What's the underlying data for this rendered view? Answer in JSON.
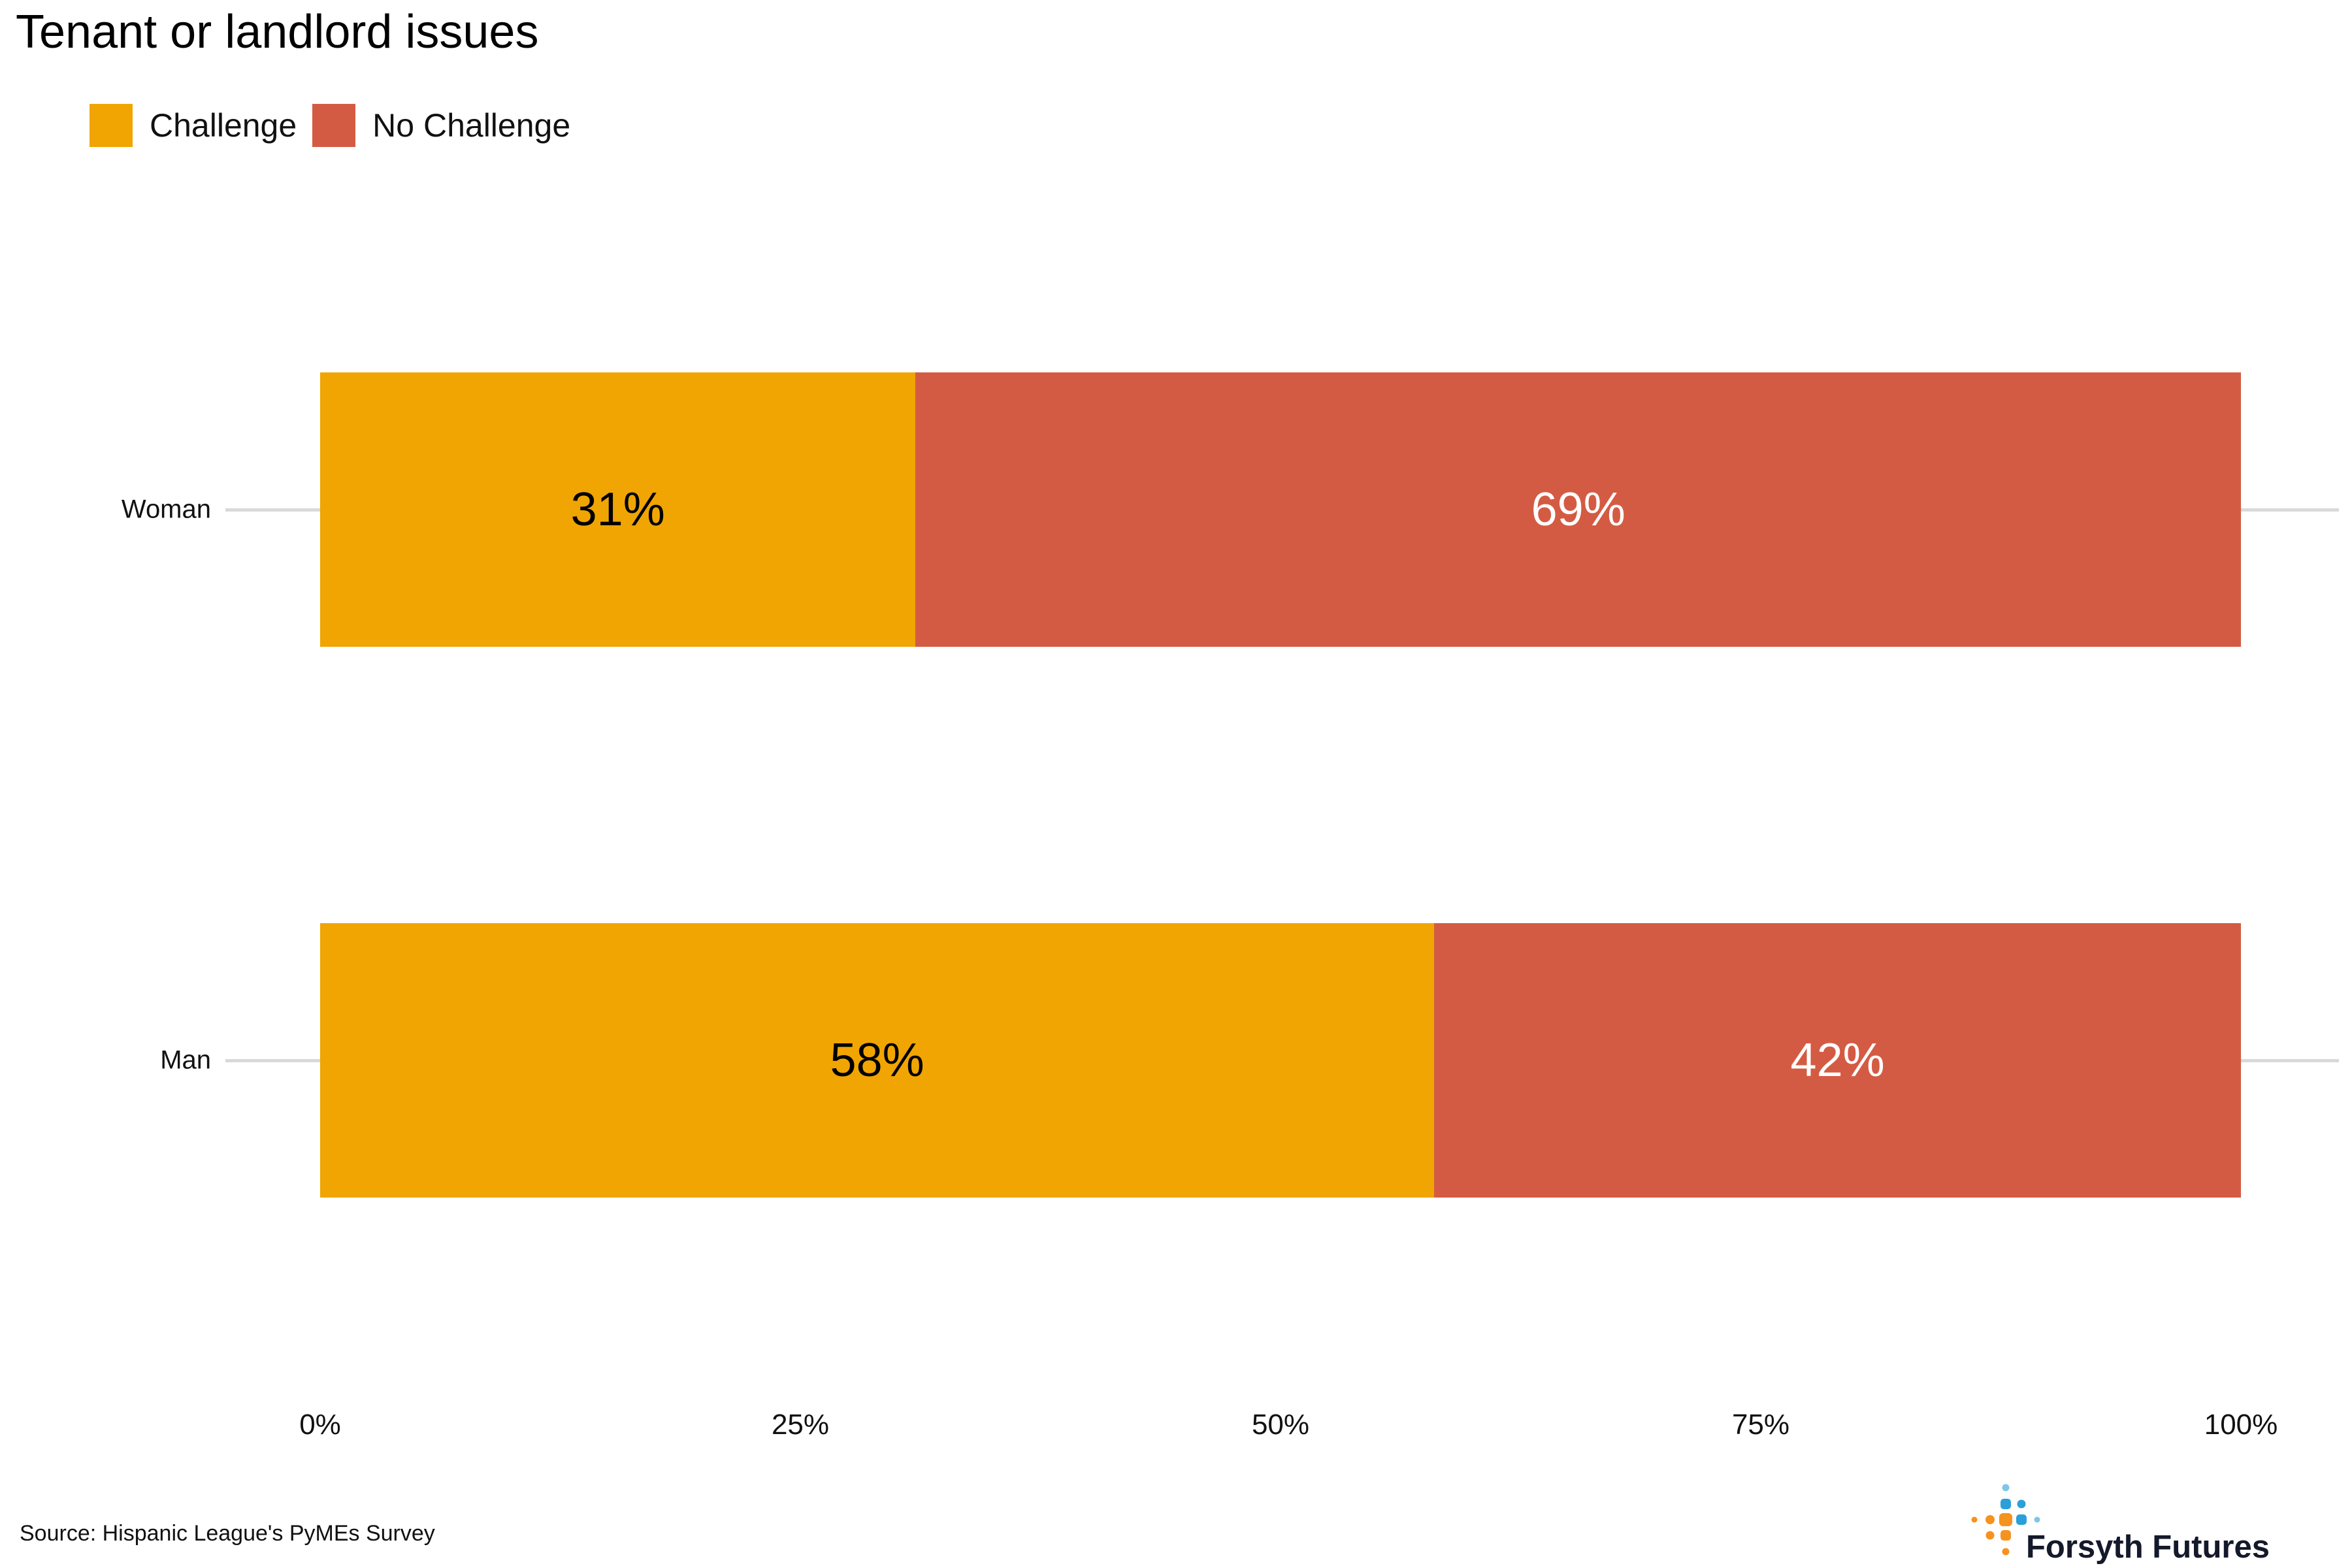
{
  "title": "Tenant or landlord issues",
  "legend": [
    {
      "label": "Challenge",
      "color": "#F0A502"
    },
    {
      "label": "No Challenge",
      "color": "#D45B43"
    }
  ],
  "chart_data": {
    "type": "bar",
    "orientation": "horizontal",
    "stacked": true,
    "title": "Tenant or landlord issues",
    "categories": [
      "Woman",
      "Man"
    ],
    "series": [
      {
        "name": "Challenge",
        "color": "#F0A502",
        "label_color": "#000000",
        "values": [
          31,
          58
        ]
      },
      {
        "name": "No Challenge",
        "color": "#D45B43",
        "label_color": "#FFFFFF",
        "values": [
          69,
          42
        ]
      }
    ],
    "value_suffix": "%",
    "x_ticks": [
      "0%",
      "25%",
      "50%",
      "75%",
      "100%"
    ],
    "xlim": [
      0,
      100
    ],
    "grid": false,
    "legend_position": "top-left"
  },
  "footer": {
    "source": "Source: Hispanic League's PyMEs Survey",
    "brand": "Forsyth Futures"
  },
  "colors": {
    "axis_line": "#D9D9D9",
    "logo_orange": "#F6921E",
    "logo_blue": "#2B9FD9",
    "logo_lightblue": "#7FC6E8",
    "logo_text": "#14192B"
  }
}
